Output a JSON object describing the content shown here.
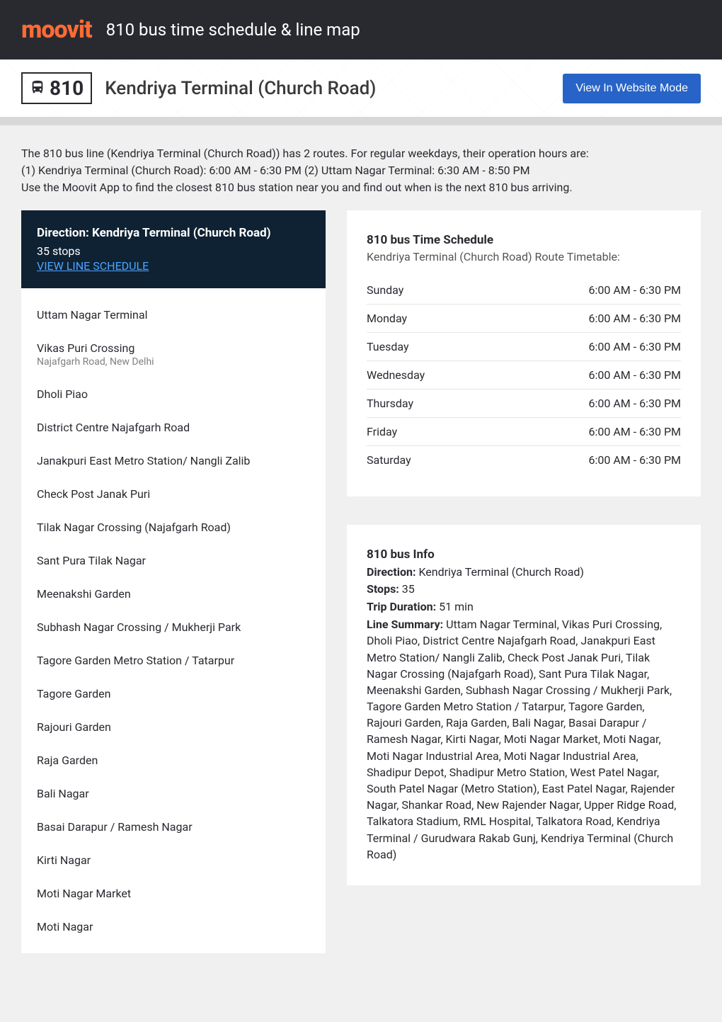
{
  "header": {
    "logo_text": "moovit",
    "title": "810 bus time schedule & line map"
  },
  "subheader": {
    "line_number": "810",
    "route_name": "Kendriya Terminal (Church Road)",
    "website_button": "View In Website Mode"
  },
  "intro": {
    "line1": "The 810 bus line (Kendriya Terminal (Church Road)) has 2 routes. For regular weekdays, their operation hours are:",
    "line2": "(1) Kendriya Terminal (Church Road): 6:00 AM - 6:30 PM (2) Uttam Nagar Terminal: 6:30 AM - 8:50 PM",
    "line3": "Use the Moovit App to find the closest 810 bus station near you and find out when is the next 810 bus arriving."
  },
  "direction_box": {
    "label": "Direction: Kendriya Terminal (Church Road)",
    "stops_count": "35 stops",
    "schedule_link": "VIEW LINE SCHEDULE"
  },
  "stops": [
    {
      "name": "Uttam Nagar Terminal"
    },
    {
      "name": "Vikas Puri Crossing",
      "sub": "Najafgarh Road, New Delhi"
    },
    {
      "name": "Dholi Piao"
    },
    {
      "name": "District Centre Najafgarh Road"
    },
    {
      "name": "Janakpuri East Metro Station/ Nangli Zalib"
    },
    {
      "name": "Check Post Janak Puri"
    },
    {
      "name": "Tilak Nagar Crossing (Najafgarh Road)"
    },
    {
      "name": "Sant Pura Tilak Nagar"
    },
    {
      "name": "Meenakshi Garden"
    },
    {
      "name": "Subhash Nagar Crossing / Mukherji Park"
    },
    {
      "name": "Tagore Garden Metro Station / Tatarpur"
    },
    {
      "name": "Tagore Garden"
    },
    {
      "name": "Rajouri Garden"
    },
    {
      "name": "Raja Garden"
    },
    {
      "name": "Bali Nagar"
    },
    {
      "name": "Basai Darapur / Ramesh Nagar"
    },
    {
      "name": "Kirti Nagar"
    },
    {
      "name": "Moti Nagar Market"
    },
    {
      "name": "Moti Nagar"
    }
  ],
  "schedule_panel": {
    "title": "810 bus Time Schedule",
    "subtitle": "Kendriya Terminal (Church Road) Route Timetable:",
    "rows": [
      {
        "day": "Sunday",
        "hours": "6:00 AM - 6:30 PM"
      },
      {
        "day": "Monday",
        "hours": "6:00 AM - 6:30 PM"
      },
      {
        "day": "Tuesday",
        "hours": "6:00 AM - 6:30 PM"
      },
      {
        "day": "Wednesday",
        "hours": "6:00 AM - 6:30 PM"
      },
      {
        "day": "Thursday",
        "hours": "6:00 AM - 6:30 PM"
      },
      {
        "day": "Friday",
        "hours": "6:00 AM - 6:30 PM"
      },
      {
        "day": "Saturday",
        "hours": "6:00 AM - 6:30 PM"
      }
    ]
  },
  "info_panel": {
    "title": "810 bus Info",
    "direction_label": "Direction:",
    "direction_value": " Kendriya Terminal (Church Road)",
    "stops_label": "Stops:",
    "stops_value": " 35",
    "duration_label": "Trip Duration:",
    "duration_value": " 51 min",
    "summary_label": "Line Summary:",
    "summary_value": " Uttam Nagar Terminal, Vikas Puri Crossing, Dholi Piao, District Centre Najafgarh Road, Janakpuri East Metro Station/ Nangli Zalib, Check Post Janak Puri, Tilak Nagar Crossing (Najafgarh Road), Sant Pura Tilak Nagar, Meenakshi Garden, Subhash Nagar Crossing / Mukherji Park, Tagore Garden Metro Station / Tatarpur, Tagore Garden, Rajouri Garden, Raja Garden, Bali Nagar, Basai Darapur / Ramesh Nagar, Kirti Nagar, Moti Nagar Market, Moti Nagar, Moti Nagar Industrial Area, Moti Nagar Industrial Area, Shadipur Depot, Shadipur Metro Station, West Patel Nagar, South Patel Nagar (Metro Station), East Patel Nagar, Rajender Nagar, Shankar Road, New Rajender Nagar, Upper Ridge Road, Talkatora Stadium, RML Hospital, Talkatora Road, Kendriya Terminal / Gurudwara Rakab Gunj, Kendriya Terminal (Church Road)"
  },
  "colors": {
    "brand_orange": "#ff6b35",
    "dark_header": "#292a30",
    "direction_bg": "#0e2233",
    "link_blue": "#4da3ff",
    "button_blue": "#2864c7"
  }
}
